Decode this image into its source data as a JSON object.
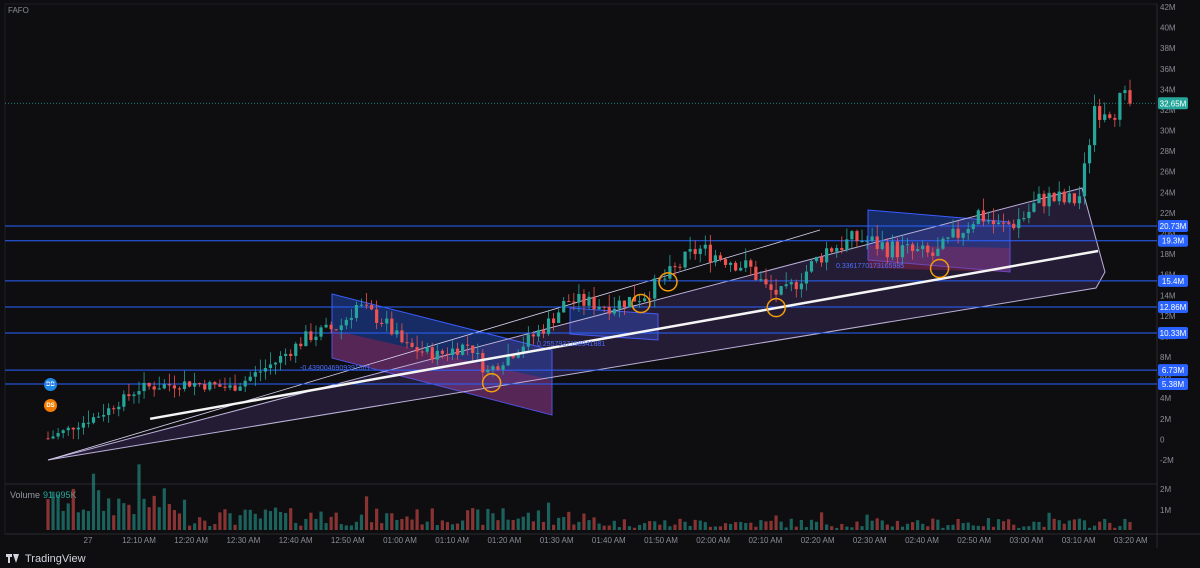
{
  "symbol": "FAFO",
  "volume_label": "Volume",
  "volume_value": "91.095K",
  "logo_text": "TradingView",
  "badges": [
    {
      "label": "DB",
      "color": "#2962ff"
    },
    {
      "label": "DS",
      "color": "#f57c00"
    }
  ],
  "colors": {
    "up": "#26a69a",
    "down": "#ef5350",
    "hline": "#2962ff",
    "trend": "#f5f5f5",
    "circle": "#f59e0b",
    "price_tag": "#26a69a"
  },
  "chart_data": {
    "type": "candlestick",
    "price_axis_ticks": [
      "42M",
      "40M",
      "38M",
      "36M",
      "34M",
      "32M",
      "30M",
      "28M",
      "26M",
      "24M",
      "22M",
      "20M",
      "18M",
      "16M",
      "14M",
      "12M",
      "10M",
      "8M",
      "6M",
      "4M",
      "2M",
      "0",
      "-2M"
    ],
    "price_range": [
      -2,
      42
    ],
    "volume_axis_ticks": [
      "2M",
      "1M"
    ],
    "time_axis_ticks": [
      "27",
      "12:10 AM",
      "12:20 AM",
      "12:30 AM",
      "12:40 AM",
      "12:50 AM",
      "01:00 AM",
      "01:10 AM",
      "01:20 AM",
      "01:30 AM",
      "01:40 AM",
      "01:50 AM",
      "02:00 AM",
      "02:10 AM",
      "02:20 AM",
      "02:30 AM",
      "02:40 AM",
      "02:50 AM",
      "03:00 AM",
      "03:10 AM",
      "03:20 AM"
    ],
    "last_price": {
      "value": 32.65,
      "label": "32.65M"
    },
    "horizontal_levels": [
      {
        "value": 20.73,
        "label": "20.73M"
      },
      {
        "value": 19.3,
        "label": "19.3M"
      },
      {
        "value": 15.4,
        "label": "15.4M"
      },
      {
        "value": 12.86,
        "label": "12.86M"
      },
      {
        "value": 10.33,
        "label": "10.33M"
      },
      {
        "value": 6.73,
        "label": "6.73M"
      },
      {
        "value": 5.38,
        "label": "5.38M"
      }
    ],
    "channel_labels": [
      "-0.4390046909391361",
      "0.2557937158941881",
      "0.3361770173165985"
    ],
    "trend_line": {
      "from": [
        0.05,
        2.0
      ],
      "to": [
        0.915,
        18.3
      ]
    },
    "key_points": [
      {
        "t": 0.41,
        "v": 5.5
      },
      {
        "t": 0.573,
        "v": 15.3
      },
      {
        "t": 0.548,
        "v": 13.2
      },
      {
        "t": 0.673,
        "v": 12.8
      },
      {
        "t": 0.824,
        "v": 16.6
      }
    ],
    "series": [
      {
        "name": "price",
        "keypoints": [
          [
            0.0,
            0.1
          ],
          [
            0.05,
            2.5
          ],
          [
            0.085,
            5.0
          ],
          [
            0.13,
            5.5
          ],
          [
            0.17,
            5.0
          ],
          [
            0.21,
            7.5
          ],
          [
            0.24,
            10.0
          ],
          [
            0.27,
            11.0
          ],
          [
            0.285,
            13.0
          ],
          [
            0.31,
            11.5
          ],
          [
            0.33,
            9.0
          ],
          [
            0.36,
            8.2
          ],
          [
            0.39,
            9.3
          ],
          [
            0.405,
            6.5
          ],
          [
            0.43,
            8.5
          ],
          [
            0.46,
            11.0
          ],
          [
            0.48,
            13.5
          ],
          [
            0.52,
            13.0
          ],
          [
            0.55,
            14.0
          ],
          [
            0.575,
            16.0
          ],
          [
            0.6,
            18.5
          ],
          [
            0.63,
            17.5
          ],
          [
            0.65,
            16.5
          ],
          [
            0.665,
            14.5
          ],
          [
            0.68,
            14.0
          ],
          [
            0.72,
            18.5
          ],
          [
            0.75,
            19.5
          ],
          [
            0.78,
            18.5
          ],
          [
            0.82,
            17.8
          ],
          [
            0.86,
            22.0
          ],
          [
            0.88,
            20.5
          ],
          [
            0.9,
            21.5
          ],
          [
            0.92,
            23.5
          ],
          [
            0.945,
            23.0
          ],
          [
            0.955,
            23.8
          ],
          [
            0.967,
            32.5
          ]
        ]
      }
    ]
  }
}
